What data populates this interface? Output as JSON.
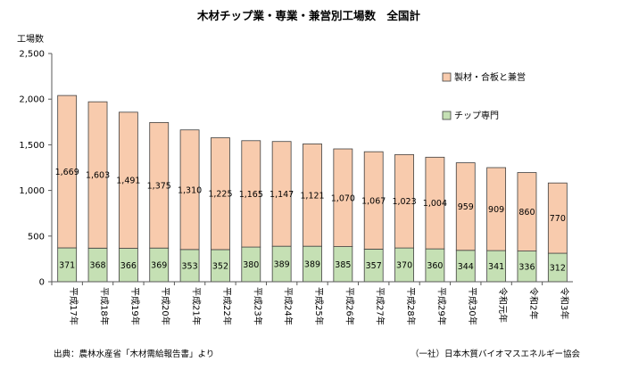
{
  "chart_data": {
    "type": "bar",
    "stacked": true,
    "title": "木材チップ業・専業・兼営別工場数　全国計",
    "ylabel": "工場数",
    "xlabel": "",
    "ylim": [
      0,
      2500
    ],
    "yticks": [
      "0",
      "500",
      "1,000",
      "1,500",
      "2,000",
      "2,500"
    ],
    "ytick_values": [
      0,
      500,
      1000,
      1500,
      2000,
      2500
    ],
    "grid": false,
    "legend_position": "right",
    "categories": [
      "平成17年",
      "平成18年",
      "平成19年",
      "平成20年",
      "平成21年",
      "平成22年",
      "平成23年",
      "平成24年",
      "平成25年",
      "平成26年",
      "平成27年",
      "平成28年",
      "平成29年",
      "平成30年",
      "令和元年",
      "令和2年",
      "令和3年"
    ],
    "series": [
      {
        "name": "チップ専門",
        "color": "#c5e0b4",
        "values": [
          371,
          368,
          366,
          369,
          353,
          352,
          380,
          389,
          389,
          385,
          357,
          370,
          360,
          344,
          341,
          336,
          312
        ],
        "labels": [
          "371",
          "368",
          "366",
          "369",
          "353",
          "352",
          "380",
          "389",
          "389",
          "385",
          "357",
          "370",
          "360",
          "344",
          "341",
          "336",
          "312"
        ]
      },
      {
        "name": "製材・合板と兼営",
        "color": "#f8cbad",
        "values": [
          1669,
          1603,
          1491,
          1375,
          1310,
          1225,
          1165,
          1147,
          1121,
          1070,
          1067,
          1023,
          1004,
          959,
          909,
          860,
          770
        ],
        "labels": [
          "1,669",
          "1,603",
          "1,491",
          "1,375",
          "1,310",
          "1,225",
          "1,165",
          "1,147",
          "1,121",
          "1,070",
          "1,067",
          "1,023",
          "1,004",
          "959",
          "909",
          "860",
          "770"
        ]
      }
    ],
    "legend": [
      "製材・合板と兼営",
      "チップ専門"
    ]
  },
  "footer": {
    "source": "出典：農林水産省「木材需給報告書」より",
    "credit": "（一社）日本木質バイオマスエネルギー協会"
  }
}
